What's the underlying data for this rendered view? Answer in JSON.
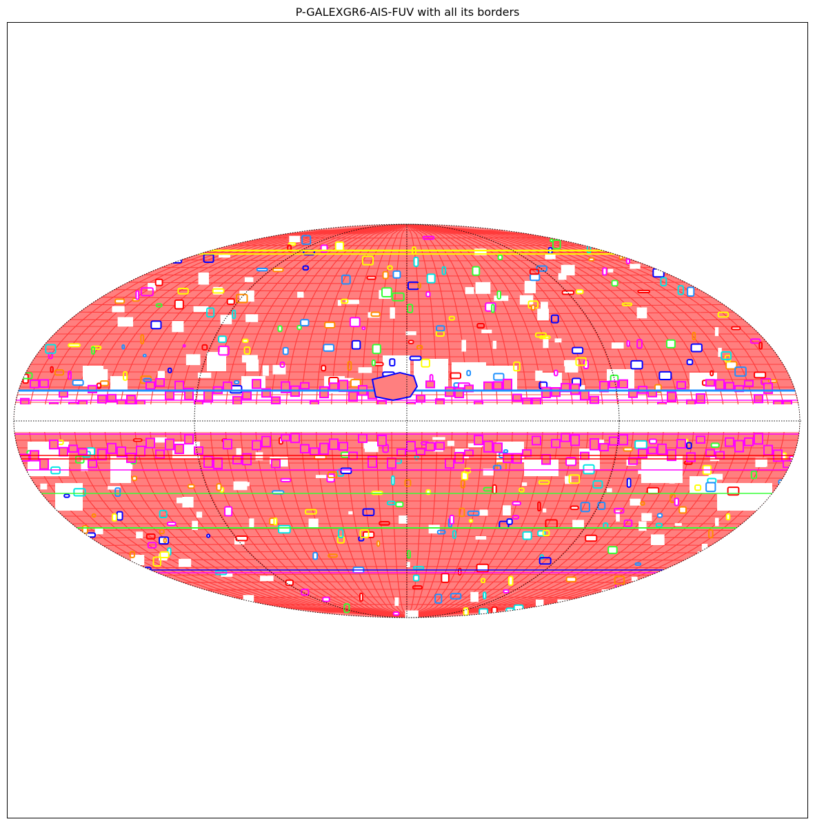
{
  "title": "P-GALEXGR6-AIS-FUV with all its borders",
  "projection": "mollweide",
  "colors": {
    "coverage_fill": "#ff7f7f",
    "coverage_grid": "#ff3b3b",
    "graticule": "#000000",
    "border_palette": [
      "#ff00ff",
      "#1e90ff",
      "#ff0000",
      "#33ff33",
      "#ffff00",
      "#0000ff",
      "#00e5e5",
      "#ff8c00"
    ]
  },
  "galactic_gap_lat_deg": [
    -14,
    5
  ]
}
